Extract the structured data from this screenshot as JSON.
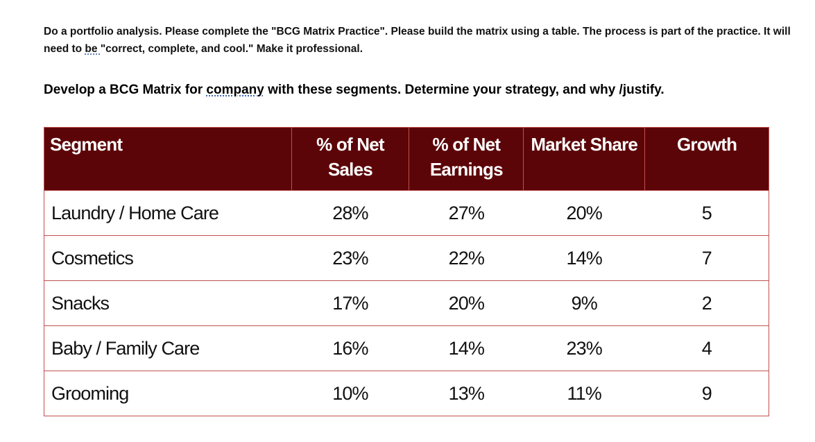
{
  "instructions": {
    "parts": [
      "Do a portfolio analysis. Please complete the \"BCG Matrix Practice\". Please build the matrix using a table. The process is part of the practice. It will need to ",
      "be ",
      "\"correct, complete, and cool.\" Make it professional."
    ]
  },
  "task": {
    "parts": [
      "Develop a BCG Matrix for ",
      "company",
      " with these segments. Determine your strategy, and why /justify."
    ]
  },
  "table": {
    "header": [
      "Segment",
      "% of Net Sales",
      "% of Net Earnings",
      "Market Share",
      "Growth"
    ],
    "rows": [
      [
        "Laundry / Home Care",
        "28%",
        "27%",
        "20%",
        "5"
      ],
      [
        "Cosmetics",
        "23%",
        "22%",
        "14%",
        "7"
      ],
      [
        "Snacks",
        "17%",
        "20%",
        "9%",
        "2"
      ],
      [
        "Baby / Family Care",
        "16%",
        "14%",
        "23%",
        "4"
      ],
      [
        "Grooming",
        "10%",
        "13%",
        "11%",
        "9"
      ]
    ]
  }
}
